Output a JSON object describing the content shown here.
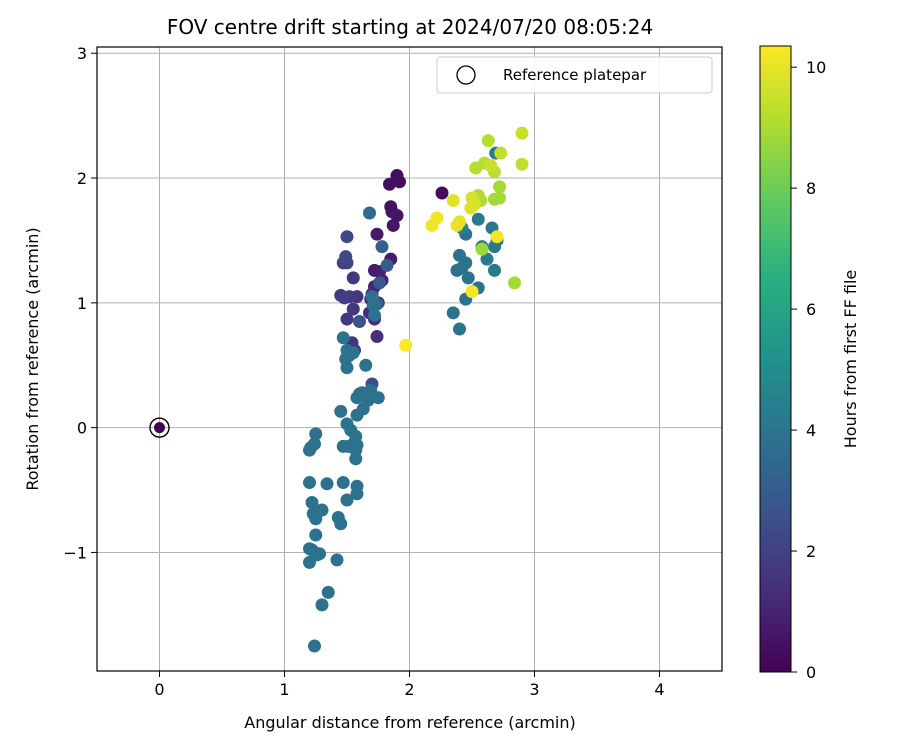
{
  "chart_data": {
    "type": "scatter",
    "title": "FOV centre drift starting at 2024/07/20 08:05:24",
    "xlabel": "Angular distance from reference (arcmin)",
    "ylabel": "Rotation from reference (arcmin)",
    "xlim": [
      -0.5,
      4.5
    ],
    "ylim": [
      -1.95,
      3.05
    ],
    "xticks": [
      0,
      1,
      2,
      3,
      4
    ],
    "xtick_labels": [
      "0",
      "1",
      "2",
      "3",
      "4"
    ],
    "yticks": [
      -1,
      0,
      1,
      2,
      3
    ],
    "ytick_labels": [
      "−1",
      "0",
      "1",
      "2",
      "3"
    ],
    "grid": true,
    "legend": {
      "position": "top-right",
      "entries": [
        "Reference platepar"
      ]
    },
    "colorbar": {
      "label": "Hours from first FF file",
      "range": [
        0,
        10.35
      ],
      "ticks": [
        0,
        2,
        4,
        6,
        8,
        10
      ],
      "tick_labels": [
        "0",
        "2",
        "4",
        "6",
        "8",
        "10"
      ],
      "colormap": "viridis"
    },
    "reference": {
      "name": "Reference platepar",
      "x": 0,
      "y": 0,
      "hours": 0
    },
    "points": [
      {
        "x": 2.26,
        "y": 1.88,
        "h": 0.3
      },
      {
        "x": 1.9,
        "y": 2.02,
        "h": 0.3
      },
      {
        "x": 1.92,
        "y": 1.97,
        "h": 0.4
      },
      {
        "x": 1.84,
        "y": 1.95,
        "h": 0.4
      },
      {
        "x": 1.85,
        "y": 1.77,
        "h": 0.5
      },
      {
        "x": 1.86,
        "y": 1.73,
        "h": 0.5
      },
      {
        "x": 1.9,
        "y": 1.7,
        "h": 0.6
      },
      {
        "x": 1.87,
        "y": 1.62,
        "h": 0.6
      },
      {
        "x": 1.74,
        "y": 1.55,
        "h": 0.7
      },
      {
        "x": 1.85,
        "y": 1.35,
        "h": 0.7
      },
      {
        "x": 1.72,
        "y": 1.26,
        "h": 0.8
      },
      {
        "x": 1.76,
        "y": 1.25,
        "h": 0.9
      },
      {
        "x": 1.78,
        "y": 1.18,
        "h": 1.0
      },
      {
        "x": 1.72,
        "y": 1.13,
        "h": 1.0
      },
      {
        "x": 1.7,
        "y": 1.07,
        "h": 1.1
      },
      {
        "x": 1.69,
        "y": 1.03,
        "h": 1.2
      },
      {
        "x": 1.75,
        "y": 1.0,
        "h": 1.2
      },
      {
        "x": 1.68,
        "y": 0.92,
        "h": 1.3
      },
      {
        "x": 1.72,
        "y": 0.87,
        "h": 1.3
      },
      {
        "x": 1.74,
        "y": 0.73,
        "h": 1.4
      },
      {
        "x": 1.54,
        "y": 0.68,
        "h": 1.5
      },
      {
        "x": 1.56,
        "y": 0.62,
        "h": 1.5
      },
      {
        "x": 1.55,
        "y": 1.2,
        "h": 1.6
      },
      {
        "x": 1.58,
        "y": 1.05,
        "h": 1.6
      },
      {
        "x": 1.55,
        "y": 0.95,
        "h": 1.7
      },
      {
        "x": 1.5,
        "y": 0.87,
        "h": 1.7
      },
      {
        "x": 1.52,
        "y": 1.05,
        "h": 1.8
      },
      {
        "x": 1.45,
        "y": 1.06,
        "h": 1.8
      },
      {
        "x": 1.48,
        "y": 1.04,
        "h": 1.9
      },
      {
        "x": 1.47,
        "y": 1.32,
        "h": 2.0
      },
      {
        "x": 1.5,
        "y": 1.32,
        "h": 2.1
      },
      {
        "x": 1.49,
        "y": 1.37,
        "h": 2.2
      },
      {
        "x": 1.5,
        "y": 1.53,
        "h": 2.3
      },
      {
        "x": 1.7,
        "y": 0.35,
        "h": 2.4
      },
      {
        "x": 1.6,
        "y": 0.85,
        "h": 2.6
      },
      {
        "x": 1.76,
        "y": 1.16,
        "h": 2.8
      },
      {
        "x": 1.82,
        "y": 1.3,
        "h": 3.0
      },
      {
        "x": 1.78,
        "y": 1.45,
        "h": 3.2
      },
      {
        "x": 1.74,
        "y": 0.99,
        "h": 3.3
      },
      {
        "x": 1.68,
        "y": 1.72,
        "h": 3.6
      },
      {
        "x": 1.71,
        "y": 0.98,
        "h": 3.8
      },
      {
        "x": 1.72,
        "y": 0.9,
        "h": 3.9
      },
      {
        "x": 1.7,
        "y": 1.05,
        "h": 3.9
      },
      {
        "x": 1.69,
        "y": 0.3,
        "h": 3.9
      },
      {
        "x": 1.65,
        "y": 0.5,
        "h": 3.9
      },
      {
        "x": 1.7,
        "y": 0.25,
        "h": 3.8
      },
      {
        "x": 1.67,
        "y": 0.22,
        "h": 3.9
      },
      {
        "x": 1.75,
        "y": 0.24,
        "h": 3.9
      },
      {
        "x": 1.62,
        "y": 0.28,
        "h": 3.9
      },
      {
        "x": 1.6,
        "y": 0.27,
        "h": 3.9
      },
      {
        "x": 1.58,
        "y": 0.24,
        "h": 3.9
      },
      {
        "x": 1.63,
        "y": 0.15,
        "h": 3.9
      },
      {
        "x": 1.58,
        "y": 0.1,
        "h": 3.9
      },
      {
        "x": 1.5,
        "y": 0.48,
        "h": 3.9
      },
      {
        "x": 1.49,
        "y": 0.55,
        "h": 3.9
      },
      {
        "x": 1.5,
        "y": 0.62,
        "h": 3.9
      },
      {
        "x": 1.47,
        "y": 0.72,
        "h": 3.9
      },
      {
        "x": 1.52,
        "y": 0.58,
        "h": 3.9
      },
      {
        "x": 1.55,
        "y": 0.6,
        "h": 3.9
      },
      {
        "x": 1.45,
        "y": 0.13,
        "h": 3.9
      },
      {
        "x": 1.5,
        "y": 0.03,
        "h": 3.9
      },
      {
        "x": 1.53,
        "y": -0.02,
        "h": 3.9
      },
      {
        "x": 1.57,
        "y": -0.07,
        "h": 3.9
      },
      {
        "x": 1.56,
        "y": -0.12,
        "h": 3.9
      },
      {
        "x": 1.57,
        "y": -0.18,
        "h": 3.9
      },
      {
        "x": 1.57,
        "y": -0.25,
        "h": 3.9
      },
      {
        "x": 1.47,
        "y": -0.15,
        "h": 3.9
      },
      {
        "x": 1.51,
        "y": -0.15,
        "h": 3.9
      },
      {
        "x": 1.58,
        "y": -0.14,
        "h": 3.9
      },
      {
        "x": 1.58,
        "y": -0.47,
        "h": 3.9
      },
      {
        "x": 1.58,
        "y": -0.53,
        "h": 3.9
      },
      {
        "x": 1.47,
        "y": -0.44,
        "h": 3.9
      },
      {
        "x": 1.5,
        "y": -0.58,
        "h": 3.9
      },
      {
        "x": 1.43,
        "y": -0.72,
        "h": 3.9
      },
      {
        "x": 1.45,
        "y": -0.77,
        "h": 3.9
      },
      {
        "x": 1.42,
        "y": -1.06,
        "h": 3.9
      },
      {
        "x": 1.34,
        "y": -0.45,
        "h": 3.9
      },
      {
        "x": 1.3,
        "y": -0.66,
        "h": 3.9
      },
      {
        "x": 1.25,
        "y": -0.05,
        "h": 3.9
      },
      {
        "x": 1.24,
        "y": -0.13,
        "h": 3.9
      },
      {
        "x": 1.2,
        "y": -0.18,
        "h": 3.9
      },
      {
        "x": 1.21,
        "y": -0.16,
        "h": 3.9
      },
      {
        "x": 1.2,
        "y": -0.44,
        "h": 3.9
      },
      {
        "x": 1.22,
        "y": -0.6,
        "h": 3.9
      },
      {
        "x": 1.23,
        "y": -0.69,
        "h": 3.9
      },
      {
        "x": 1.25,
        "y": -0.73,
        "h": 3.9
      },
      {
        "x": 1.25,
        "y": -0.86,
        "h": 3.9
      },
      {
        "x": 1.2,
        "y": -0.97,
        "h": 3.9
      },
      {
        "x": 1.22,
        "y": -0.98,
        "h": 3.9
      },
      {
        "x": 1.26,
        "y": -1.02,
        "h": 3.9
      },
      {
        "x": 1.28,
        "y": -1.01,
        "h": 3.9
      },
      {
        "x": 1.2,
        "y": -1.08,
        "h": 3.9
      },
      {
        "x": 1.35,
        "y": -1.32,
        "h": 3.9
      },
      {
        "x": 1.3,
        "y": -1.42,
        "h": 3.9
      },
      {
        "x": 1.24,
        "y": -1.75,
        "h": 3.9
      },
      {
        "x": 2.35,
        "y": 0.92,
        "h": 3.9
      },
      {
        "x": 2.4,
        "y": 0.79,
        "h": 3.9
      },
      {
        "x": 2.45,
        "y": 1.03,
        "h": 3.9
      },
      {
        "x": 2.38,
        "y": 1.26,
        "h": 3.9
      },
      {
        "x": 2.42,
        "y": 1.28,
        "h": 3.9
      },
      {
        "x": 2.45,
        "y": 1.32,
        "h": 3.9
      },
      {
        "x": 2.4,
        "y": 1.38,
        "h": 3.9
      },
      {
        "x": 2.47,
        "y": 1.2,
        "h": 3.9
      },
      {
        "x": 2.55,
        "y": 1.12,
        "h": 3.9
      },
      {
        "x": 2.45,
        "y": 1.55,
        "h": 3.9
      },
      {
        "x": 2.55,
        "y": 1.67,
        "h": 4.2
      },
      {
        "x": 2.58,
        "y": 1.45,
        "h": 4.2
      },
      {
        "x": 2.62,
        "y": 1.35,
        "h": 4.2
      },
      {
        "x": 2.68,
        "y": 1.26,
        "h": 4.2
      },
      {
        "x": 2.66,
        "y": 1.6,
        "h": 4.2
      },
      {
        "x": 2.68,
        "y": 1.45,
        "h": 4.2
      },
      {
        "x": 2.7,
        "y": 1.5,
        "h": 4.2
      },
      {
        "x": 2.69,
        "y": 2.2,
        "h": 4.2
      },
      {
        "x": 2.42,
        "y": 1.6,
        "h": 4.5
      },
      {
        "x": 2.58,
        "y": 1.43,
        "h": 8.8
      },
      {
        "x": 2.68,
        "y": 1.83,
        "h": 8.9
      },
      {
        "x": 2.72,
        "y": 1.84,
        "h": 8.9
      },
      {
        "x": 2.72,
        "y": 1.93,
        "h": 8.9
      },
      {
        "x": 2.84,
        "y": 1.16,
        "h": 8.9
      },
      {
        "x": 2.55,
        "y": 1.86,
        "h": 9.1
      },
      {
        "x": 2.57,
        "y": 1.82,
        "h": 9.1
      },
      {
        "x": 2.6,
        "y": 2.12,
        "h": 9.2
      },
      {
        "x": 2.63,
        "y": 2.3,
        "h": 9.2
      },
      {
        "x": 2.53,
        "y": 2.08,
        "h": 9.2
      },
      {
        "x": 2.68,
        "y": 2.05,
        "h": 9.3
      },
      {
        "x": 2.73,
        "y": 2.2,
        "h": 9.4
      },
      {
        "x": 2.9,
        "y": 2.11,
        "h": 9.4
      },
      {
        "x": 2.9,
        "y": 2.36,
        "h": 9.5
      },
      {
        "x": 2.65,
        "y": 2.1,
        "h": 9.5
      },
      {
        "x": 2.5,
        "y": 1.84,
        "h": 9.7
      },
      {
        "x": 2.52,
        "y": 1.79,
        "h": 9.7
      },
      {
        "x": 2.49,
        "y": 1.76,
        "h": 9.8
      },
      {
        "x": 2.35,
        "y": 1.82,
        "h": 9.9
      },
      {
        "x": 2.4,
        "y": 1.65,
        "h": 10.0
      },
      {
        "x": 2.38,
        "y": 1.62,
        "h": 10.0
      },
      {
        "x": 2.22,
        "y": 1.68,
        "h": 10.1
      },
      {
        "x": 2.18,
        "y": 1.62,
        "h": 10.1
      },
      {
        "x": 2.5,
        "y": 1.09,
        "h": 10.2
      },
      {
        "x": 2.7,
        "y": 1.53,
        "h": 10.2
      },
      {
        "x": 1.97,
        "y": 0.66,
        "h": 10.3
      }
    ]
  }
}
